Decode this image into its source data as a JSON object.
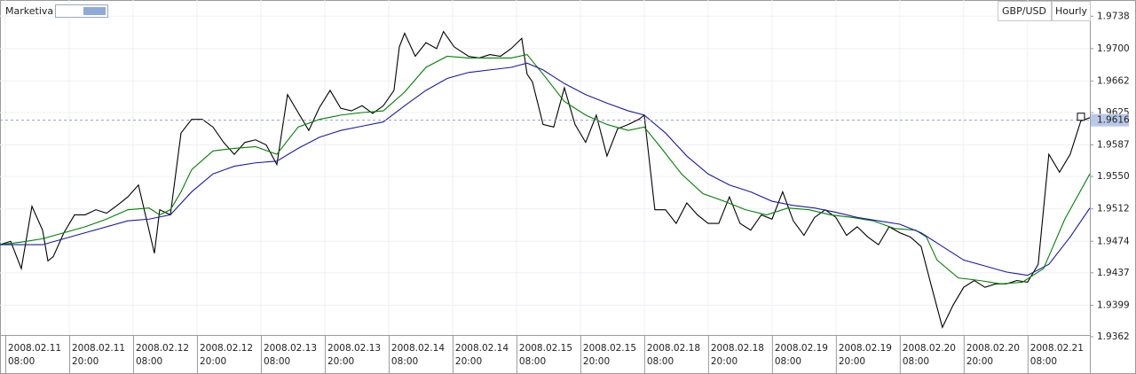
{
  "toolbar": {
    "brand": "Marketiva",
    "symbol": "GBP/USD",
    "timeframe": "Hourly"
  },
  "chart_data": {
    "type": "line",
    "xlim": [
      0,
      204.7
    ],
    "ylim": [
      1.9362,
      1.9757
    ],
    "grid": true,
    "xticks": [
      {
        "value": 1,
        "label": "2008.02.11 08:00"
      },
      {
        "value": 13,
        "label": "2008.02.11 20:00"
      },
      {
        "value": 25,
        "label": "2008.02.12 08:00"
      },
      {
        "value": 37,
        "label": "2008.02.12 20:00"
      },
      {
        "value": 49,
        "label": "2008.02.13 08:00"
      },
      {
        "value": 61,
        "label": "2008.02.13 20:00"
      },
      {
        "value": 73,
        "label": "2008.02.14 08:00"
      },
      {
        "value": 85,
        "label": "2008.02.14 20:00"
      },
      {
        "value": 97,
        "label": "2008.02.15 08:00"
      },
      {
        "value": 109,
        "label": "2008.02.15 20:00"
      },
      {
        "value": 121,
        "label": "2008.02.18 08:00"
      },
      {
        "value": 133,
        "label": "2008.02.18 20:00"
      },
      {
        "value": 145,
        "label": "2008.02.19 08:00"
      },
      {
        "value": 157,
        "label": "2008.02.19 20:00"
      },
      {
        "value": 169,
        "label": "2008.02.20 08:00"
      },
      {
        "value": 181,
        "label": "2008.02.20 20:00"
      },
      {
        "value": 193,
        "label": "2008.02.21 08:00"
      }
    ],
    "yticks": [
      1.9738,
      {
        "value": 1.97,
        "label": "1.9700"
      },
      1.9662,
      1.9625,
      1.9587,
      {
        "value": 1.955,
        "label": "1.9550"
      },
      1.9512,
      1.9474,
      1.9437,
      1.9399,
      1.9362
    ],
    "last_price": {
      "value": 1.9616,
      "label": "1.9616"
    },
    "series": [
      {
        "color": "#000000",
        "x": [
          0,
          2,
          4,
          6,
          8,
          9,
          10,
          12,
          14,
          16,
          18,
          20,
          22,
          24,
          26,
          29,
          30,
          32,
          34,
          36,
          38,
          40,
          42,
          44,
          46,
          48,
          50,
          52,
          54,
          56,
          58,
          60,
          62,
          64,
          66,
          68,
          70,
          72,
          74,
          75,
          76,
          78,
          80,
          82,
          83.3,
          85.3,
          88,
          90,
          92,
          94,
          96,
          98,
          99,
          100,
          102,
          104,
          106,
          108,
          110,
          112,
          114,
          116,
          118,
          120,
          121,
          123,
          125,
          127,
          129,
          131,
          133,
          135,
          137,
          139,
          141,
          143,
          145,
          147,
          149,
          151,
          153,
          155,
          157,
          159,
          161,
          163,
          165,
          167,
          169,
          171,
          173,
          175,
          177,
          179,
          181,
          183,
          185,
          187,
          189,
          191,
          193,
          195,
          197,
          199,
          201,
          203,
          204.7
        ],
        "values": [
          1.947,
          1.9474,
          1.9442,
          1.9515,
          1.9487,
          1.9451,
          1.9456,
          1.9484,
          1.9505,
          1.9505,
          1.9511,
          1.9507,
          1.9516,
          1.9526,
          1.954,
          1.946,
          1.9511,
          1.9505,
          1.9601,
          1.9617,
          1.9617,
          1.9608,
          1.959,
          1.9576,
          1.959,
          1.9593,
          1.9587,
          1.9564,
          1.9646,
          1.9625,
          1.9604,
          1.9631,
          1.9651,
          1.963,
          1.9627,
          1.9633,
          1.9624,
          1.9633,
          1.9651,
          1.9702,
          1.9718,
          1.9691,
          1.9707,
          1.97,
          1.972,
          1.9702,
          1.9691,
          1.9689,
          1.9693,
          1.9691,
          1.97,
          1.9712,
          1.967,
          1.9661,
          1.9611,
          1.9608,
          1.9654,
          1.9611,
          1.959,
          1.9622,
          1.9574,
          1.9606,
          1.9611,
          1.9617,
          1.9622,
          1.9511,
          1.9511,
          1.9495,
          1.9519,
          1.9505,
          1.9495,
          1.9495,
          1.9526,
          1.9495,
          1.9487,
          1.9505,
          1.95,
          1.9532,
          1.9498,
          1.9481,
          1.9502,
          1.9511,
          1.9502,
          1.9481,
          1.9491,
          1.9479,
          1.947,
          1.9491,
          1.9484,
          1.9479,
          1.9468,
          1.942,
          1.9373,
          1.9399,
          1.942,
          1.9428,
          1.942,
          1.9424,
          1.9424,
          1.9428,
          1.9426,
          1.9447,
          1.9576,
          1.9555,
          1.9576,
          1.9615,
          1.9619
        ]
      },
      {
        "color": "#008000",
        "x": [
          0,
          4,
          8,
          12,
          16,
          20,
          24,
          28,
          30,
          32,
          34,
          36,
          40,
          44,
          48,
          52,
          56,
          60,
          64,
          68,
          72,
          76,
          80,
          84,
          88,
          92,
          96,
          99,
          102,
          106,
          110,
          114,
          118,
          121,
          124,
          128,
          132,
          136,
          140,
          144,
          148,
          152,
          156,
          160,
          164,
          168,
          172,
          174,
          176,
          180,
          184,
          188,
          192,
          196,
          200,
          204.7
        ],
        "values": [
          1.947,
          1.9473,
          1.9477,
          1.9484,
          1.9491,
          1.95,
          1.9511,
          1.9513,
          1.9505,
          1.9511,
          1.9532,
          1.9558,
          1.958,
          1.9583,
          1.9585,
          1.9576,
          1.9608,
          1.9617,
          1.9622,
          1.9625,
          1.9627,
          1.9649,
          1.9678,
          1.9691,
          1.9689,
          1.9689,
          1.9689,
          1.9693,
          1.967,
          1.9638,
          1.9622,
          1.9611,
          1.9604,
          1.9608,
          1.9585,
          1.9553,
          1.953,
          1.9521,
          1.9511,
          1.9505,
          1.9513,
          1.9511,
          1.9505,
          1.9502,
          1.9498,
          1.9489,
          1.9487,
          1.9479,
          1.9452,
          1.9431,
          1.9428,
          1.9424,
          1.9426,
          1.9442,
          1.95,
          1.9553
        ]
      },
      {
        "color": "#1a1aa6",
        "x": [
          0,
          8,
          16,
          24,
          28,
          32,
          36,
          40,
          44,
          48,
          52,
          56,
          60,
          64,
          68,
          72,
          76,
          80,
          84,
          88,
          92,
          96,
          99,
          102,
          106,
          110,
          114,
          118,
          121,
          125,
          129,
          133,
          137,
          141,
          145,
          149,
          153,
          157,
          161,
          165,
          169,
          173,
          177,
          181,
          185,
          189,
          193,
          197,
          201,
          204.7
        ],
        "values": [
          1.947,
          1.947,
          1.9484,
          1.9498,
          1.95,
          1.9505,
          1.9532,
          1.9553,
          1.9562,
          1.9566,
          1.9568,
          1.9583,
          1.9596,
          1.9604,
          1.9609,
          1.9614,
          1.9633,
          1.9651,
          1.9665,
          1.9672,
          1.9675,
          1.9678,
          1.9683,
          1.9675,
          1.9659,
          1.9646,
          1.9636,
          1.9627,
          1.9622,
          1.9601,
          1.9574,
          1.9553,
          1.954,
          1.9532,
          1.9521,
          1.9516,
          1.9513,
          1.9508,
          1.9502,
          1.9498,
          1.9494,
          1.9484,
          1.9468,
          1.9452,
          1.9445,
          1.9438,
          1.9434,
          1.9447,
          1.9479,
          1.9513
        ]
      }
    ]
  }
}
